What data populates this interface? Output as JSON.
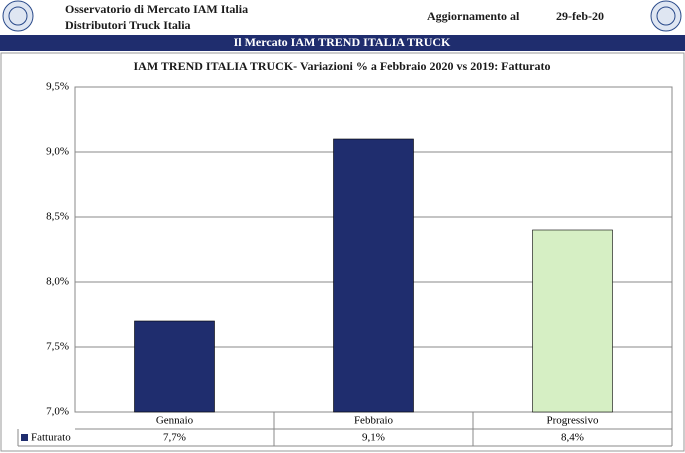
{
  "header": {
    "title": "Osservatorio di Mercato IAM Italia",
    "subtitle": "Distributori Truck Italia",
    "update_label": "Aggiornamento al",
    "update_date": "29-feb-20",
    "banner": "Il Mercato IAM TREND ITALIA TRUCK"
  },
  "chart_data": {
    "type": "bar",
    "title": "IAM TREND ITALIA TRUCK- Variazioni % a Febbraio 2020 vs 2019: Fatturato",
    "categories": [
      "Gennaio",
      "Febbraio",
      "Progressivo"
    ],
    "series": [
      {
        "name": "Fatturato",
        "color": "#1f2d6e",
        "colors": [
          "#1f2d6e",
          "#1f2d6e",
          "#d6efc4"
        ],
        "values": [
          7.7,
          9.1,
          8.4
        ],
        "value_labels": [
          "7,7%",
          "9,1%",
          "8,4%"
        ]
      }
    ],
    "ylim": [
      7.0,
      9.5
    ],
    "yticks": [
      {
        "value": 7.0,
        "label": "7,0%"
      },
      {
        "value": 7.5,
        "label": "7,5%"
      },
      {
        "value": 8.0,
        "label": "8,0%"
      },
      {
        "value": 8.5,
        "label": "8,5%"
      },
      {
        "value": 9.0,
        "label": "9,0%"
      },
      {
        "value": 9.5,
        "label": "9,5%"
      }
    ],
    "grid": true
  }
}
